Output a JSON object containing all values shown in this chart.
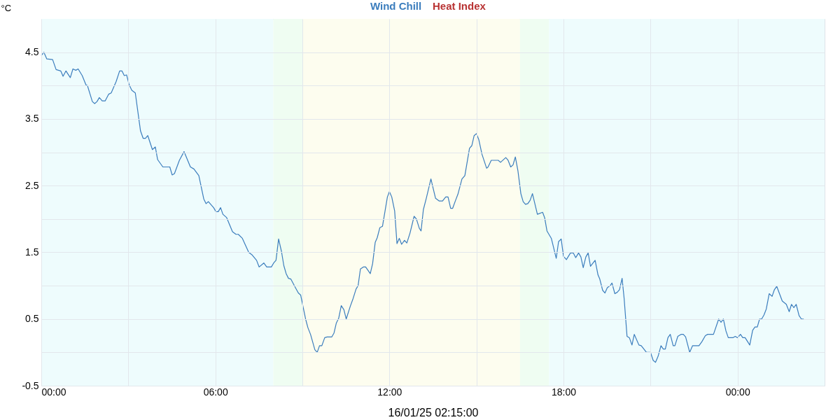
{
  "chart_data": {
    "type": "line",
    "xlabel": "16/01/25 02:15:00",
    "ylabel": "°C",
    "xlim": [
      0,
      27
    ],
    "xticks": [
      {
        "value": 0,
        "label": "00:00"
      },
      {
        "value": 3,
        "label": null
      },
      {
        "value": 6,
        "label": "06:00"
      },
      {
        "value": 9,
        "label": null
      },
      {
        "value": 12,
        "label": "12:00"
      },
      {
        "value": 15,
        "label": null
      },
      {
        "value": 18,
        "label": "18:00"
      },
      {
        "value": 21,
        "label": null
      },
      {
        "value": 24,
        "label": "00:00"
      }
    ],
    "ylim": [
      -0.5,
      5
    ],
    "yticks": [
      -0.5,
      {
        "value": 0,
        "label": null
      },
      0.5,
      {
        "value": 1,
        "label": null
      },
      1.5,
      {
        "value": 2,
        "label": null
      },
      2.5,
      {
        "value": 3,
        "label": null
      },
      3.5,
      {
        "value": 4,
        "label": null
      },
      4.5
    ],
    "grid": true,
    "legend": "top",
    "bands": [
      {
        "axis": "x",
        "from": 0,
        "to": 8,
        "color": "#eefcfd"
      },
      {
        "axis": "x",
        "from": 8,
        "to": 9,
        "color": "#effdf2"
      },
      {
        "axis": "x",
        "from": 9,
        "to": 16.5,
        "color": "#fdfdef"
      },
      {
        "axis": "x",
        "from": 16.5,
        "to": 17.5,
        "color": "#effdf2"
      },
      {
        "axis": "x",
        "from": 17.5,
        "to": 27,
        "color": "#eefcfd"
      }
    ],
    "series": [
      {
        "name": "Wind Chill",
        "color": "#3b7dbd",
        "x": [
          0,
          0.09,
          0.19,
          0.39,
          0.51,
          0.67,
          0.75,
          0.85,
          1.0,
          1.09,
          1.19,
          1.27,
          1.41,
          1.54,
          1.59,
          1.76,
          1.84,
          1.92,
          2.0,
          2.1,
          2.2,
          2.32,
          2.41,
          2.58,
          2.7,
          2.78,
          2.86,
          2.94,
          3.03,
          3.12,
          3.24,
          3.42,
          3.51,
          3.59,
          3.67,
          3.83,
          3.93,
          4.01,
          4.19,
          4.43,
          4.51,
          4.59,
          4.76,
          4.92,
          5.14,
          5.26,
          5.43,
          5.6,
          5.68,
          5.76,
          5.94,
          6.02,
          6.1,
          6.18,
          6.26,
          6.39,
          6.59,
          6.71,
          6.79,
          6.93,
          7.15,
          7.27,
          7.42,
          7.51,
          7.67,
          7.77,
          7.93,
          8.01,
          8.09,
          8.18,
          8.28,
          8.36,
          8.44,
          8.52,
          8.6,
          8.76,
          8.86,
          8.94,
          9.11,
          9.19,
          9.28,
          9.43,
          9.51,
          9.59,
          9.67,
          9.77,
          9.85,
          10.01,
          10.09,
          10.17,
          10.25,
          10.34,
          10.43,
          10.51,
          10.65,
          10.75,
          10.85,
          10.92,
          11.0,
          11.1,
          11.18,
          11.26,
          11.34,
          11.42,
          11.51,
          11.58,
          11.67,
          11.76,
          11.93,
          12.0,
          12.08,
          12.18,
          12.26,
          12.34,
          12.42,
          12.52,
          12.6,
          12.71,
          12.85,
          12.93,
          13.03,
          13.09,
          13.17,
          13.27,
          13.43,
          13.59,
          13.71,
          13.83,
          13.94,
          14.02,
          14.11,
          14.18,
          14.28,
          14.36,
          14.5,
          14.6,
          14.76,
          14.84,
          14.92,
          15.0,
          15.08,
          15.19,
          15.35,
          15.4,
          15.51,
          15.75,
          15.83,
          16.01,
          16.09,
          16.18,
          16.26,
          16.34,
          16.43,
          16.53,
          16.61,
          16.69,
          16.77,
          16.85,
          16.93,
          17.1,
          17.28,
          17.35,
          17.43,
          17.58,
          17.75,
          17.83,
          17.92,
          18.0,
          18.1,
          18.24,
          18.34,
          18.42,
          18.52,
          18.6,
          18.68,
          18.77,
          18.85,
          18.93,
          19.09,
          19.19,
          19.25,
          19.35,
          19.43,
          19.51,
          19.61,
          19.67,
          19.77,
          19.85,
          19.93,
          20.02,
          20.09,
          20.19,
          20.27,
          20.36,
          20.44,
          20.6,
          20.68,
          20.86,
          21.0,
          21.09,
          21.17,
          21.26,
          21.36,
          21.44,
          21.51,
          21.6,
          21.68,
          21.78,
          21.84,
          21.94,
          22.05,
          22.13,
          22.21,
          22.35,
          22.45,
          22.67,
          22.77,
          22.89,
          22.97,
          23.17,
          23.35,
          23.43,
          23.51,
          23.6,
          23.68,
          23.84,
          23.92,
          24.0,
          24.1,
          24.18,
          24.26,
          24.42,
          24.52,
          24.6,
          24.68,
          24.76,
          24.83,
          24.91,
          24.99,
          25.09,
          25.19,
          25.27,
          25.35,
          25.54,
          25.68,
          25.78,
          25.86,
          25.94,
          26.02,
          26.12,
          26.2,
          26.28
        ],
        "values": [
          4.45,
          4.5,
          4.4,
          4.39,
          4.24,
          4.22,
          4.14,
          4.22,
          4.12,
          4.25,
          4.23,
          4.25,
          4.15,
          4.01,
          4.0,
          3.76,
          3.73,
          3.76,
          3.82,
          3.77,
          3.77,
          3.87,
          3.89,
          4.06,
          4.22,
          4.22,
          4.15,
          4.16,
          4.01,
          3.93,
          3.89,
          3.32,
          3.21,
          3.21,
          3.25,
          3.04,
          3.08,
          2.89,
          2.78,
          2.78,
          2.66,
          2.68,
          2.88,
          3.01,
          2.78,
          2.75,
          2.65,
          2.3,
          2.23,
          2.26,
          2.17,
          2.11,
          2.11,
          2.17,
          2.07,
          2.02,
          1.81,
          1.77,
          1.77,
          1.71,
          1.5,
          1.46,
          1.38,
          1.28,
          1.34,
          1.28,
          1.28,
          1.34,
          1.38,
          1.7,
          1.51,
          1.3,
          1.18,
          1.11,
          1.1,
          0.97,
          0.89,
          0.86,
          0.5,
          0.37,
          0.27,
          0.04,
          0.0,
          0.1,
          0.1,
          0.22,
          0.23,
          0.23,
          0.29,
          0.44,
          0.51,
          0.7,
          0.64,
          0.5,
          0.69,
          0.81,
          0.95,
          1.0,
          1.25,
          1.28,
          1.28,
          1.23,
          1.18,
          1.33,
          1.65,
          1.72,
          1.87,
          1.89,
          2.33,
          2.41,
          2.33,
          2.12,
          1.63,
          1.71,
          1.62,
          1.68,
          1.64,
          1.79,
          2.04,
          2.0,
          1.86,
          1.82,
          2.14,
          2.31,
          2.6,
          2.31,
          2.27,
          2.27,
          2.33,
          2.33,
          2.16,
          2.16,
          2.28,
          2.37,
          2.6,
          2.65,
          3.06,
          3.1,
          3.25,
          3.28,
          3.19,
          2.97,
          2.76,
          2.78,
          2.88,
          2.88,
          2.85,
          2.92,
          2.88,
          2.78,
          2.81,
          2.93,
          2.72,
          2.38,
          2.26,
          2.22,
          2.23,
          2.28,
          2.38,
          2.07,
          2.1,
          2.02,
          1.82,
          1.71,
          1.41,
          1.66,
          1.7,
          1.44,
          1.39,
          1.49,
          1.49,
          1.42,
          1.49,
          1.43,
          1.27,
          1.43,
          1.49,
          1.29,
          1.38,
          1.16,
          1.1,
          0.93,
          0.89,
          0.97,
          1.0,
          1.04,
          0.88,
          0.9,
          0.94,
          1.11,
          0.81,
          0.24,
          0.22,
          0.11,
          0.27,
          0.11,
          0.1,
          0.0,
          0.0,
          -0.12,
          -0.15,
          -0.06,
          0.1,
          0.05,
          0.05,
          0.22,
          0.27,
          0.1,
          0.1,
          0.24,
          0.27,
          0.27,
          0.23,
          0.0,
          0.1,
          0.1,
          0.16,
          0.25,
          0.27,
          0.27,
          0.5,
          0.45,
          0.5,
          0.32,
          0.22,
          0.22,
          0.24,
          0.22,
          0.27,
          0.22,
          0.22,
          0.11,
          0.33,
          0.38,
          0.38,
          0.5,
          0.5,
          0.56,
          0.65,
          0.88,
          0.84,
          0.94,
          0.99,
          0.77,
          0.72,
          0.61,
          0.72,
          0.67,
          0.72,
          0.55,
          0.5,
          0.5
        ]
      },
      {
        "name": "Heat Index",
        "color": "#b83232"
      }
    ]
  }
}
